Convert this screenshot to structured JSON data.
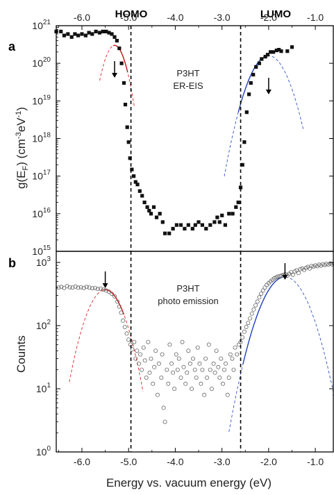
{
  "top_labels": {
    "homo": "HOMO",
    "lumo": "LUMO"
  },
  "x_axis": {
    "label": "Energy vs. vacuum energy (eV)",
    "range": [
      -6.55,
      -0.6
    ],
    "ticks": [
      -6.0,
      -5.0,
      -4.0,
      -3.0,
      -2.0,
      -1.0
    ],
    "tick_labels": [
      "-6.0",
      "-5.0",
      "-4.0",
      "-3.0",
      "-2.0",
      "-1.0"
    ]
  },
  "vlines_x": [
    -4.95,
    -2.6
  ],
  "chart_data": [
    {
      "panel": "a",
      "type": "scatter",
      "annotation": [
        "P3HT",
        "ER-EIS"
      ],
      "ylabel_parts": {
        "pre": "g(E",
        "sub": "F",
        "mid": ") (cm",
        "sup1": "-3",
        "mid2": "eV",
        "sup2": "-1",
        "post": ")"
      },
      "ylim": [
        1000000000000000.0,
        1e+21
      ],
      "yscale": "log",
      "y_ticks": [
        {
          "value": 1000000000000000.0,
          "base": "10",
          "exp": "15"
        },
        {
          "value": 1e+16,
          "base": "10",
          "exp": "16"
        },
        {
          "value": 1e+17,
          "base": "10",
          "exp": "17"
        },
        {
          "value": 1e+18,
          "base": "10",
          "exp": "18"
        },
        {
          "value": 1e+19,
          "base": "10",
          "exp": "19"
        },
        {
          "value": 1e+20,
          "base": "10",
          "exp": "20"
        },
        {
          "value": 1e+21,
          "base": "10",
          "exp": "21"
        }
      ],
      "arrows_x": [
        -5.3,
        -2.0
      ],
      "marker": "filled-square",
      "points": [
        [
          -6.55,
          7e+20
        ],
        [
          -6.45,
          7e+20
        ],
        [
          -6.38,
          5.5e+20
        ],
        [
          -6.3,
          6e+20
        ],
        [
          -6.22,
          5e+20
        ],
        [
          -6.15,
          6e+20
        ],
        [
          -6.08,
          5.5e+20
        ],
        [
          -6.0,
          6e+20
        ],
        [
          -5.92,
          5.5e+20
        ],
        [
          -5.85,
          6.5e+20
        ],
        [
          -5.78,
          6e+20
        ],
        [
          -5.7,
          7e+20
        ],
        [
          -5.62,
          6.5e+20
        ],
        [
          -5.55,
          7e+20
        ],
        [
          -5.48,
          7e+20
        ],
        [
          -5.42,
          6.5e+20
        ],
        [
          -5.36,
          6e+20
        ],
        [
          -5.3,
          5e+20
        ],
        [
          -5.25,
          4e+20
        ],
        [
          -5.2,
          2.5e+20
        ],
        [
          -5.15,
          1e+20
        ],
        [
          -5.1,
          3e+19
        ],
        [
          -5.07,
          8e+18
        ],
        [
          -5.03,
          2e+18
        ],
        [
          -5.0,
          8e+17
        ],
        [
          -4.97,
          3e+17
        ],
        [
          -4.93,
          1.5e+17
        ],
        [
          -4.89,
          1e+17
        ],
        [
          -4.85,
          7e+16
        ],
        [
          -4.81,
          6e+16
        ],
        [
          -4.76,
          4e+16
        ],
        [
          -4.71,
          3e+16
        ],
        [
          -4.66,
          2e+16
        ],
        [
          -4.6,
          1.5e+16
        ],
        [
          -4.56,
          1.2e+16
        ],
        [
          -4.52,
          1e+16
        ],
        [
          -4.46,
          1.5e+16
        ],
        [
          -4.4,
          8000000000000000.0
        ],
        [
          -4.33,
          1e+16
        ],
        [
          -4.27,
          6000000000000000.0
        ],
        [
          -4.22,
          3000000000000000.0
        ],
        [
          -4.13,
          3000000000000000.0
        ],
        [
          -4.05,
          4000000000000000.0
        ],
        [
          -3.97,
          5000000000000000.0
        ],
        [
          -3.88,
          5000000000000000.0
        ],
        [
          -3.8,
          4000000000000000.0
        ],
        [
          -3.72,
          5000000000000000.0
        ],
        [
          -3.63,
          4000000000000000.0
        ],
        [
          -3.57,
          5000000000000000.0
        ],
        [
          -3.5,
          6000000000000000.0
        ],
        [
          -3.42,
          5000000000000000.0
        ],
        [
          -3.34,
          4000000000000000.0
        ],
        [
          -3.25,
          5000000000000000.0
        ],
        [
          -3.16,
          6000000000000000.0
        ],
        [
          -3.1,
          8000000000000000.0
        ],
        [
          -3.05,
          6000000000000000.0
        ],
        [
          -3.0,
          9000000000000000.0
        ],
        [
          -2.93,
          5000000000000000.0
        ],
        [
          -2.85,
          1e+16
        ],
        [
          -2.77,
          1e+16
        ],
        [
          -2.7,
          1.5e+16
        ],
        [
          -2.65,
          2e+16
        ],
        [
          -2.6,
          5e+16
        ],
        [
          -2.56,
          2e+17
        ],
        [
          -2.52,
          8e+17
        ],
        [
          -2.47,
          5e+18
        ],
        [
          -2.42,
          1.5e+19
        ],
        [
          -2.38,
          3e+19
        ],
        [
          -2.33,
          5e+19
        ],
        [
          -2.27,
          8e+19
        ],
        [
          -2.2,
          1e+20
        ],
        [
          -2.15,
          1.3e+20
        ],
        [
          -2.07,
          1.5e+20
        ],
        [
          -2.02,
          1.7e+20
        ],
        [
          -1.96,
          2e+20
        ],
        [
          -1.9,
          2e+20
        ],
        [
          -1.83,
          2.2e+20
        ],
        [
          -1.78,
          2.3e+20
        ],
        [
          -1.73,
          2.1e+20
        ],
        [
          -1.6,
          2.1e+20
        ],
        [
          -1.5,
          2.7e+20
        ]
      ],
      "fits": [
        {
          "style": "dashed",
          "color": "#e02020",
          "center": -5.3,
          "sigma": 0.154,
          "peak": 3e+20,
          "range": [
            -5.62,
            -4.88
          ]
        },
        {
          "style": "solid",
          "color": "#cc1010",
          "center": -5.3,
          "sigma": 0.154,
          "peak": 3e+20,
          "range": [
            -5.33,
            -5.02
          ]
        },
        {
          "style": "dashed",
          "color": "#3050c8",
          "center": -2.0,
          "sigma": 0.247,
          "peak": 1.6e+20,
          "range": [
            -2.95,
            -1.25
          ]
        },
        {
          "style": "solid",
          "color": "#2040b8",
          "center": -2.0,
          "sigma": 0.247,
          "peak": 1.6e+20,
          "range": [
            -2.65,
            -2.02
          ]
        }
      ]
    },
    {
      "panel": "b",
      "type": "scatter",
      "annotation": [
        "P3HT",
        "photo emission"
      ],
      "ylabel": "Counts",
      "ylim": [
        1,
        1500
      ],
      "yscale": "log",
      "y_ticks": [
        {
          "value": 1,
          "base": "10",
          "exp": "0"
        },
        {
          "value": 10,
          "base": "10",
          "exp": "1"
        },
        {
          "value": 100,
          "base": "10",
          "exp": "2"
        },
        {
          "value": 1000,
          "base": "10",
          "exp": "3"
        }
      ],
      "arrows_x": [
        -5.5,
        -1.65
      ],
      "marker": "open-circle",
      "points": [
        [
          -6.5,
          400
        ],
        [
          -6.44,
          410
        ],
        [
          -6.38,
          395
        ],
        [
          -6.32,
          420
        ],
        [
          -6.26,
          405
        ],
        [
          -6.2,
          400
        ],
        [
          -6.14,
          415
        ],
        [
          -6.08,
          398
        ],
        [
          -6.02,
          405
        ],
        [
          -5.96,
          395
        ],
        [
          -5.9,
          410
        ],
        [
          -5.84,
          400
        ],
        [
          -5.78,
          390
        ],
        [
          -5.72,
          395
        ],
        [
          -5.66,
          380
        ],
        [
          -5.6,
          385
        ],
        [
          -5.54,
          370
        ],
        [
          -5.48,
          360
        ],
        [
          -5.42,
          345
        ],
        [
          -5.36,
          320
        ],
        [
          -5.3,
          290
        ],
        [
          -5.24,
          240
        ],
        [
          -5.2,
          200
        ],
        [
          -5.16,
          160
        ],
        [
          -5.12,
          120
        ],
        [
          -5.08,
          95
        ],
        [
          -5.04,
          75
        ],
        [
          -5.0,
          60
        ],
        [
          -4.96,
          50
        ],
        [
          -4.92,
          42
        ],
        [
          -4.88,
          55
        ],
        [
          -4.85,
          30
        ],
        [
          -4.82,
          40
        ],
        [
          -4.78,
          25
        ],
        [
          -4.75,
          35
        ],
        [
          -4.72,
          20
        ],
        [
          -4.68,
          45
        ],
        [
          -4.65,
          28
        ],
        [
          -4.62,
          15
        ],
        [
          -4.58,
          55
        ],
        [
          -4.55,
          18
        ],
        [
          -4.52,
          30
        ],
        [
          -4.48,
          12
        ],
        [
          -4.45,
          22
        ],
        [
          -4.42,
          40
        ],
        [
          -4.38,
          8
        ],
        [
          -4.35,
          25
        ],
        [
          -4.3,
          15
        ],
        [
          -4.28,
          35
        ],
        [
          -4.25,
          5
        ],
        [
          -4.22,
          3
        ],
        [
          -4.18,
          20
        ],
        [
          -4.15,
          12
        ],
        [
          -4.12,
          50
        ],
        [
          -4.08,
          25
        ],
        [
          -4.05,
          18
        ],
        [
          -4.02,
          10
        ],
        [
          -3.98,
          35
        ],
        [
          -3.95,
          20
        ],
        [
          -3.92,
          30
        ],
        [
          -3.88,
          15
        ],
        [
          -3.85,
          55
        ],
        [
          -3.82,
          22
        ],
        [
          -3.78,
          12
        ],
        [
          -3.75,
          18
        ],
        [
          -3.72,
          40
        ],
        [
          -3.68,
          25
        ],
        [
          -3.65,
          10
        ],
        [
          -3.62,
          30
        ],
        [
          -3.58,
          20
        ],
        [
          -3.55,
          15
        ],
        [
          -3.52,
          45
        ],
        [
          -3.48,
          25
        ],
        [
          -3.45,
          12
        ],
        [
          -3.42,
          20
        ],
        [
          -3.38,
          8
        ],
        [
          -3.35,
          30
        ],
        [
          -3.32,
          15
        ],
        [
          -3.28,
          50
        ],
        [
          -3.25,
          20
        ],
        [
          -3.22,
          10
        ],
        [
          -3.18,
          25
        ],
        [
          -3.15,
          18
        ],
        [
          -3.12,
          40
        ],
        [
          -3.08,
          22
        ],
        [
          -3.05,
          15
        ],
        [
          -3.02,
          30
        ],
        [
          -2.98,
          12
        ],
        [
          -2.95,
          20
        ],
        [
          -2.92,
          25
        ],
        [
          -2.88,
          8
        ],
        [
          -2.85,
          15
        ],
        [
          -2.82,
          35
        ],
        [
          -2.78,
          30
        ],
        [
          -2.75,
          20
        ],
        [
          -2.72,
          45
        ],
        [
          -2.68,
          35
        ],
        [
          -2.64,
          50
        ],
        [
          -2.6,
          55
        ],
        [
          -2.56,
          65
        ],
        [
          -2.52,
          80
        ],
        [
          -2.48,
          95
        ],
        [
          -2.44,
          110
        ],
        [
          -2.4,
          130
        ],
        [
          -2.36,
          155
        ],
        [
          -2.32,
          180
        ],
        [
          -2.28,
          210
        ],
        [
          -2.24,
          240
        ],
        [
          -2.2,
          280
        ],
        [
          -2.16,
          320
        ],
        [
          -2.12,
          360
        ],
        [
          -2.08,
          400
        ],
        [
          -2.04,
          440
        ],
        [
          -2.0,
          470
        ],
        [
          -1.96,
          500
        ],
        [
          -1.92,
          530
        ],
        [
          -1.88,
          560
        ],
        [
          -1.84,
          580
        ],
        [
          -1.8,
          600
        ],
        [
          -1.76,
          610
        ],
        [
          -1.72,
          620
        ],
        [
          -1.68,
          640
        ],
        [
          -1.64,
          650
        ],
        [
          -1.6,
          620
        ],
        [
          -1.56,
          660
        ],
        [
          -1.52,
          700
        ],
        [
          -1.48,
          640
        ],
        [
          -1.44,
          720
        ],
        [
          -1.4,
          750
        ],
        [
          -1.36,
          680
        ],
        [
          -1.32,
          780
        ],
        [
          -1.28,
          800
        ],
        [
          -1.24,
          760
        ],
        [
          -1.2,
          820
        ],
        [
          -1.16,
          850
        ],
        [
          -1.12,
          800
        ],
        [
          -1.08,
          880
        ],
        [
          -1.04,
          860
        ],
        [
          -1.0,
          900
        ],
        [
          -0.96,
          870
        ],
        [
          -0.92,
          920
        ],
        [
          -0.88,
          890
        ],
        [
          -0.84,
          940
        ],
        [
          -0.8,
          910
        ],
        [
          -0.76,
          950
        ],
        [
          -0.72,
          920
        ],
        [
          -0.68,
          960
        ],
        [
          -0.64,
          930
        ],
        [
          -0.6,
          950
        ]
      ],
      "fits": [
        {
          "style": "dashed",
          "color": "#e02020",
          "center": -5.5,
          "sigma": 0.297,
          "peak": 370,
          "range": [
            -6.27,
            -4.69
          ]
        },
        {
          "style": "solid",
          "color": "#cc1010",
          "center": -5.5,
          "sigma": 0.297,
          "peak": 370,
          "range": [
            -5.55,
            -5.1
          ]
        },
        {
          "style": "dashed",
          "color": "#3050c8",
          "center": -1.65,
          "sigma": 0.357,
          "peak": 590,
          "range": [
            -2.85,
            -0.6
          ]
        },
        {
          "style": "solid",
          "color": "#2040b8",
          "center": -1.65,
          "sigma": 0.357,
          "peak": 590,
          "range": [
            -2.55,
            -1.7
          ]
        }
      ]
    }
  ]
}
